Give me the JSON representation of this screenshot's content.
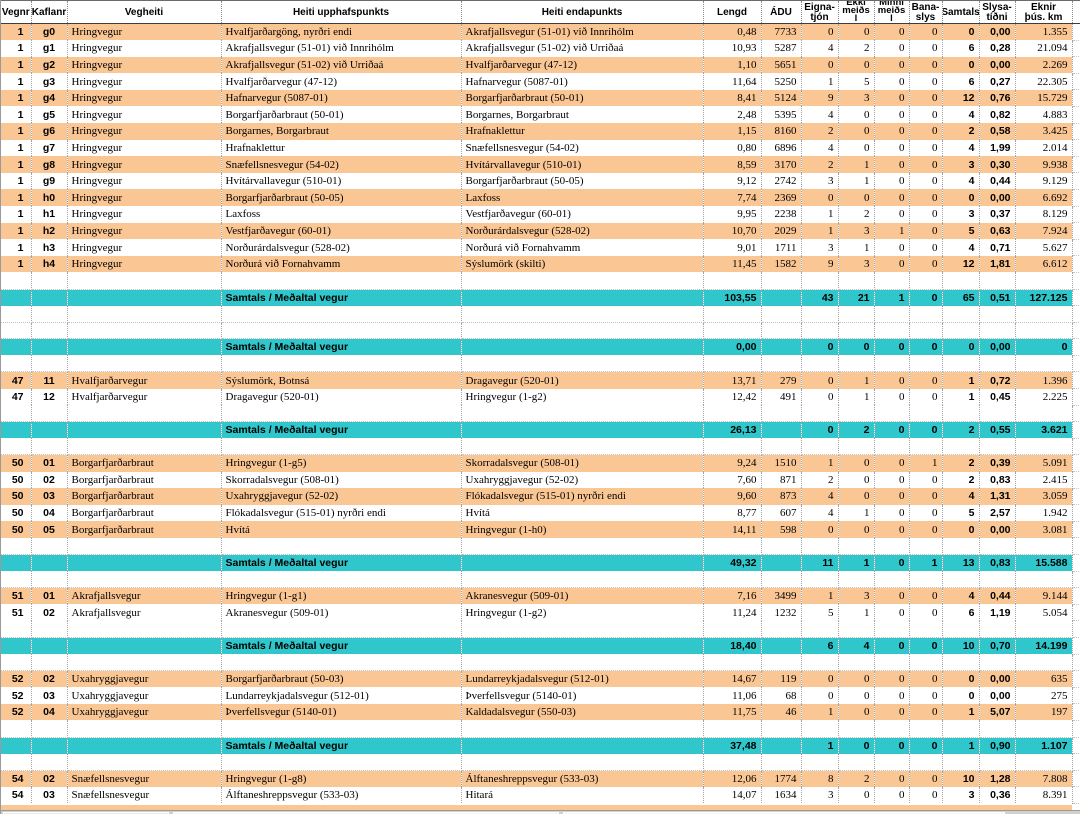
{
  "colors": {
    "row_orange": "#FAC694",
    "total_teal": "#2FC7CB",
    "gridline": "#A3A3A3",
    "window_chrome_grey": "#D4D0C8"
  },
  "table": {
    "totals_label": "Samtals / Meðaltal vegur",
    "columns": [
      {
        "key": "v",
        "label": "Vegnr"
      },
      {
        "key": "k",
        "label": "Kaflanr"
      },
      {
        "key": "vh",
        "label": "Vegheiti"
      },
      {
        "key": "up",
        "label": "Heiti upphafspunkts"
      },
      {
        "key": "en",
        "label": "Heiti endapunkts"
      },
      {
        "key": "le",
        "label": "Lengd"
      },
      {
        "key": "adu",
        "label": "ÁDU"
      },
      {
        "key": "ej",
        "label": "Eigna-\ntjón"
      },
      {
        "key": "em",
        "label": "Ekki\nmeiðs\nl",
        "tall": true
      },
      {
        "key": "mm",
        "label": "Minni\nmeiðs\nl",
        "tall": true
      },
      {
        "key": "bs",
        "label": "Bana-\nslys"
      },
      {
        "key": "st",
        "label": "Samtals"
      },
      {
        "key": "sl",
        "label": "Slysa-\ntíðni"
      },
      {
        "key": "ek",
        "label": "Eknir\nþús. km"
      },
      {
        "key": "sp",
        "label": ""
      }
    ],
    "rows": [
      {
        "type": "data",
        "shade": "orange",
        "v": "1",
        "k": "g0",
        "vh": "Hringvegur",
        "up": "Hvalfjarðargöng, nyrðri endi",
        "en": "Akrafjallsvegur (51-01) við Innrihólm",
        "le": "0,48",
        "adu": "7733",
        "ej": "0",
        "em": "0",
        "mm": "0",
        "bs": "0",
        "st": "0",
        "sl": "0,00",
        "ek": "1.355"
      },
      {
        "type": "data",
        "shade": "white",
        "v": "1",
        "k": "g1",
        "vh": "Hringvegur",
        "up": "Akrafjallsvegur (51-01) við Innrihólm",
        "en": "Akrafjallsvegur (51-02) við Urriðaá",
        "le": "10,93",
        "adu": "5287",
        "ej": "4",
        "em": "2",
        "mm": "0",
        "bs": "0",
        "st": "6",
        "sl": "0,28",
        "ek": "21.094"
      },
      {
        "type": "data",
        "shade": "orange",
        "v": "1",
        "k": "g2",
        "vh": "Hringvegur",
        "up": "Akrafjallsvegur (51-02) við Urriðaá",
        "en": "Hvalfjarðarvegur (47-12)",
        "le": "1,10",
        "adu": "5651",
        "ej": "0",
        "em": "0",
        "mm": "0",
        "bs": "0",
        "st": "0",
        "sl": "0,00",
        "ek": "2.269"
      },
      {
        "type": "data",
        "shade": "white",
        "v": "1",
        "k": "g3",
        "vh": "Hringvegur",
        "up": "Hvalfjarðarvegur (47-12)",
        "en": "Hafnarvegur (5087-01)",
        "le": "11,64",
        "adu": "5250",
        "ej": "1",
        "em": "5",
        "mm": "0",
        "bs": "0",
        "st": "6",
        "sl": "0,27",
        "ek": "22.305"
      },
      {
        "type": "data",
        "shade": "orange",
        "v": "1",
        "k": "g4",
        "vh": "Hringvegur",
        "up": "Hafnarvegur (5087-01)",
        "en": "Borgarfjarðarbraut (50-01)",
        "le": "8,41",
        "adu": "5124",
        "ej": "9",
        "em": "3",
        "mm": "0",
        "bs": "0",
        "st": "12",
        "sl": "0,76",
        "ek": "15.729"
      },
      {
        "type": "data",
        "shade": "white",
        "v": "1",
        "k": "g5",
        "vh": "Hringvegur",
        "up": "Borgarfjarðarbraut (50-01)",
        "en": "Borgarnes, Borgarbraut",
        "le": "2,48",
        "adu": "5395",
        "ej": "4",
        "em": "0",
        "mm": "0",
        "bs": "0",
        "st": "4",
        "sl": "0,82",
        "ek": "4.883"
      },
      {
        "type": "data",
        "shade": "orange",
        "v": "1",
        "k": "g6",
        "vh": "Hringvegur",
        "up": "Borgarnes, Borgarbraut",
        "en": "Hrafnaklettur",
        "le": "1,15",
        "adu": "8160",
        "ej": "2",
        "em": "0",
        "mm": "0",
        "bs": "0",
        "st": "2",
        "sl": "0,58",
        "ek": "3.425"
      },
      {
        "type": "data",
        "shade": "white",
        "v": "1",
        "k": "g7",
        "vh": "Hringvegur",
        "up": "Hrafnaklettur",
        "en": "Snæfellsnesvegur (54-02)",
        "le": "0,80",
        "adu": "6896",
        "ej": "4",
        "em": "0",
        "mm": "0",
        "bs": "0",
        "st": "4",
        "sl": "1,99",
        "ek": "2.014"
      },
      {
        "type": "data",
        "shade": "orange",
        "v": "1",
        "k": "g8",
        "vh": "Hringvegur",
        "up": "Snæfellsnesvegur (54-02)",
        "en": "Hvítárvallavegur (510-01)",
        "le": "8,59",
        "adu": "3170",
        "ej": "2",
        "em": "1",
        "mm": "0",
        "bs": "0",
        "st": "3",
        "sl": "0,30",
        "ek": "9.938"
      },
      {
        "type": "data",
        "shade": "white",
        "v": "1",
        "k": "g9",
        "vh": "Hringvegur",
        "up": "Hvítárvallavegur (510-01)",
        "en": "Borgarfjarðarbraut (50-05)",
        "le": "9,12",
        "adu": "2742",
        "ej": "3",
        "em": "1",
        "mm": "0",
        "bs": "0",
        "st": "4",
        "sl": "0,44",
        "ek": "9.129"
      },
      {
        "type": "data",
        "shade": "orange",
        "v": "1",
        "k": "h0",
        "vh": "Hringvegur",
        "up": "Borgarfjarðarbraut (50-05)",
        "en": "Laxfoss",
        "le": "7,74",
        "adu": "2369",
        "ej": "0",
        "em": "0",
        "mm": "0",
        "bs": "0",
        "st": "0",
        "sl": "0,00",
        "ek": "6.692"
      },
      {
        "type": "data",
        "shade": "white",
        "v": "1",
        "k": "h1",
        "vh": "Hringvegur",
        "up": "Laxfoss",
        "en": "Vestfjarðavegur (60-01)",
        "le": "9,95",
        "adu": "2238",
        "ej": "1",
        "em": "2",
        "mm": "0",
        "bs": "0",
        "st": "3",
        "sl": "0,37",
        "ek": "8.129"
      },
      {
        "type": "data",
        "shade": "orange",
        "v": "1",
        "k": "h2",
        "vh": "Hringvegur",
        "up": "Vestfjarðavegur (60-01)",
        "en": "Norðurárdalsvegur (528-02)",
        "le": "10,70",
        "adu": "2029",
        "ej": "1",
        "em": "3",
        "mm": "1",
        "bs": "0",
        "st": "5",
        "sl": "0,63",
        "ek": "7.924"
      },
      {
        "type": "data",
        "shade": "white",
        "v": "1",
        "k": "h3",
        "vh": "Hringvegur",
        "up": "Norðurárdalsvegur (528-02)",
        "en": "Norðurá við Fornahvamm",
        "le": "9,01",
        "adu": "1711",
        "ej": "3",
        "em": "1",
        "mm": "0",
        "bs": "0",
        "st": "4",
        "sl": "0,71",
        "ek": "5.627"
      },
      {
        "type": "data",
        "shade": "orange",
        "v": "1",
        "k": "h4",
        "vh": "Hringvegur",
        "up": "Norðurá við Fornahvamm",
        "en": "Sýslumörk (skilti)",
        "le": "11,45",
        "adu": "1582",
        "ej": "9",
        "em": "3",
        "mm": "0",
        "bs": "0",
        "st": "12",
        "sl": "1,81",
        "ek": "6.612"
      },
      {
        "type": "blank"
      },
      {
        "type": "total",
        "le": "103,55",
        "adu": "",
        "ej": "43",
        "em": "21",
        "mm": "1",
        "bs": "0",
        "st": "65",
        "sl": "0,51",
        "ek": "127.125"
      },
      {
        "type": "blank"
      },
      {
        "type": "blank"
      },
      {
        "type": "total",
        "le": "0,00",
        "adu": "",
        "ej": "0",
        "em": "0",
        "mm": "0",
        "bs": "0",
        "st": "0",
        "sl": "0,00",
        "ek": "0"
      },
      {
        "type": "blank"
      },
      {
        "type": "data",
        "shade": "orange",
        "v": "47",
        "k": "11",
        "vh": "Hvalfjarðarvegur",
        "up": "Sýslumörk, Botnsá",
        "en": "Dragavegur (520-01)",
        "le": "13,71",
        "adu": "279",
        "ej": "0",
        "em": "1",
        "mm": "0",
        "bs": "0",
        "st": "1",
        "sl": "0,72",
        "ek": "1.396"
      },
      {
        "type": "data",
        "shade": "white",
        "v": "47",
        "k": "12",
        "vh": "Hvalfjarðarvegur",
        "up": "Dragavegur (520-01)",
        "en": "Hringvegur (1-g2)",
        "le": "12,42",
        "adu": "491",
        "ej": "0",
        "em": "1",
        "mm": "0",
        "bs": "0",
        "st": "1",
        "sl": "0,45",
        "ek": "2.225"
      },
      {
        "type": "blank"
      },
      {
        "type": "total",
        "le": "26,13",
        "adu": "",
        "ej": "0",
        "em": "2",
        "mm": "0",
        "bs": "0",
        "st": "2",
        "sl": "0,55",
        "ek": "3.621"
      },
      {
        "type": "blank"
      },
      {
        "type": "data",
        "shade": "orange",
        "v": "50",
        "k": "01",
        "vh": "Borgarfjarðarbraut",
        "up": "Hringvegur (1-g5)",
        "en": "Skorradalsvegur (508-01)",
        "le": "9,24",
        "adu": "1510",
        "ej": "1",
        "em": "0",
        "mm": "0",
        "bs": "1",
        "st": "2",
        "sl": "0,39",
        "ek": "5.091"
      },
      {
        "type": "data",
        "shade": "white",
        "v": "50",
        "k": "02",
        "vh": "Borgarfjarðarbraut",
        "up": "Skorradalsvegur (508-01)",
        "en": "Uxahryggjavegur (52-02)",
        "le": "7,60",
        "adu": "871",
        "ej": "2",
        "em": "0",
        "mm": "0",
        "bs": "0",
        "st": "2",
        "sl": "0,83",
        "ek": "2.415"
      },
      {
        "type": "data",
        "shade": "orange",
        "v": "50",
        "k": "03",
        "vh": "Borgarfjarðarbraut",
        "up": "Uxahryggjavegur (52-02)",
        "en": "Flókadalsvegur (515-01) nyrðri endi",
        "le": "9,60",
        "adu": "873",
        "ej": "4",
        "em": "0",
        "mm": "0",
        "bs": "0",
        "st": "4",
        "sl": "1,31",
        "ek": "3.059"
      },
      {
        "type": "data",
        "shade": "white",
        "v": "50",
        "k": "04",
        "vh": "Borgarfjarðarbraut",
        "up": "Flókadalsvegur (515-01) nyrðri endi",
        "en": "Hvítá",
        "le": "8,77",
        "adu": "607",
        "ej": "4",
        "em": "1",
        "mm": "0",
        "bs": "0",
        "st": "5",
        "sl": "2,57",
        "ek": "1.942"
      },
      {
        "type": "data",
        "shade": "orange",
        "v": "50",
        "k": "05",
        "vh": "Borgarfjarðarbraut",
        "up": "Hvítá",
        "en": "Hringvegur (1-h0)",
        "le": "14,11",
        "adu": "598",
        "ej": "0",
        "em": "0",
        "mm": "0",
        "bs": "0",
        "st": "0",
        "sl": "0,00",
        "ek": "3.081"
      },
      {
        "type": "blank"
      },
      {
        "type": "total",
        "le": "49,32",
        "adu": "",
        "ej": "11",
        "em": "1",
        "mm": "0",
        "bs": "1",
        "st": "13",
        "sl": "0,83",
        "ek": "15.588"
      },
      {
        "type": "blank"
      },
      {
        "type": "data",
        "shade": "orange",
        "v": "51",
        "k": "01",
        "vh": "Akrafjallsvegur",
        "up": "Hringvegur (1-g1)",
        "en": "Akranesvegur (509-01)",
        "le": "7,16",
        "adu": "3499",
        "ej": "1",
        "em": "3",
        "mm": "0",
        "bs": "0",
        "st": "4",
        "sl": "0,44",
        "ek": "9.144"
      },
      {
        "type": "data",
        "shade": "white",
        "v": "51",
        "k": "02",
        "vh": "Akrafjallsvegur",
        "up": "Akranesvegur (509-01)",
        "en": "Hringvegur (1-g2)",
        "le": "11,24",
        "adu": "1232",
        "ej": "5",
        "em": "1",
        "mm": "0",
        "bs": "0",
        "st": "6",
        "sl": "1,19",
        "ek": "5.054"
      },
      {
        "type": "blank"
      },
      {
        "type": "total",
        "le": "18,40",
        "adu": "",
        "ej": "6",
        "em": "4",
        "mm": "0",
        "bs": "0",
        "st": "10",
        "sl": "0,70",
        "ek": "14.199"
      },
      {
        "type": "blank"
      },
      {
        "type": "data",
        "shade": "orange",
        "v": "52",
        "k": "02",
        "vh": "Uxahryggjavegur",
        "up": "Borgarfjarðarbraut (50-03)",
        "en": "Lundarreykjadalsvegur (512-01)",
        "le": "14,67",
        "adu": "119",
        "ej": "0",
        "em": "0",
        "mm": "0",
        "bs": "0",
        "st": "0",
        "sl": "0,00",
        "ek": "635"
      },
      {
        "type": "data",
        "shade": "white",
        "v": "52",
        "k": "03",
        "vh": "Uxahryggjavegur",
        "up": "Lundarreykjadalsvegur (512-01)",
        "en": "Þverfellsvegur (5140-01)",
        "le": "11,06",
        "adu": "68",
        "ej": "0",
        "em": "0",
        "mm": "0",
        "bs": "0",
        "st": "0",
        "sl": "0,00",
        "ek": "275"
      },
      {
        "type": "data",
        "shade": "orange",
        "v": "52",
        "k": "04",
        "vh": "Uxahryggjavegur",
        "up": "Þverfellsvegur (5140-01)",
        "en": "Kaldadalsvegur (550-03)",
        "le": "11,75",
        "adu": "46",
        "ej": "1",
        "em": "0",
        "mm": "0",
        "bs": "0",
        "st": "1",
        "sl": "5,07",
        "ek": "197"
      },
      {
        "type": "blank"
      },
      {
        "type": "total",
        "le": "37,48",
        "adu": "",
        "ej": "1",
        "em": "0",
        "mm": "0",
        "bs": "0",
        "st": "1",
        "sl": "0,90",
        "ek": "1.107"
      },
      {
        "type": "blank"
      },
      {
        "type": "data",
        "shade": "orange",
        "v": "54",
        "k": "02",
        "vh": "Snæfellsnesvegur",
        "up": "Hringvegur (1-g8)",
        "en": "Álftaneshreppsvegur (533-03)",
        "le": "12,06",
        "adu": "1774",
        "ej": "8",
        "em": "2",
        "mm": "0",
        "bs": "0",
        "st": "10",
        "sl": "1,28",
        "ek": "7.808"
      },
      {
        "type": "data",
        "shade": "white",
        "v": "54",
        "k": "03",
        "vh": "Snæfellsnesvegur",
        "up": "Álftaneshreppsvegur (533-03)",
        "en": "Hitará",
        "le": "14,07",
        "adu": "1634",
        "ej": "3",
        "em": "0",
        "mm": "0",
        "bs": "0",
        "st": "3",
        "sl": "0,36",
        "ek": "8.391"
      }
    ]
  }
}
